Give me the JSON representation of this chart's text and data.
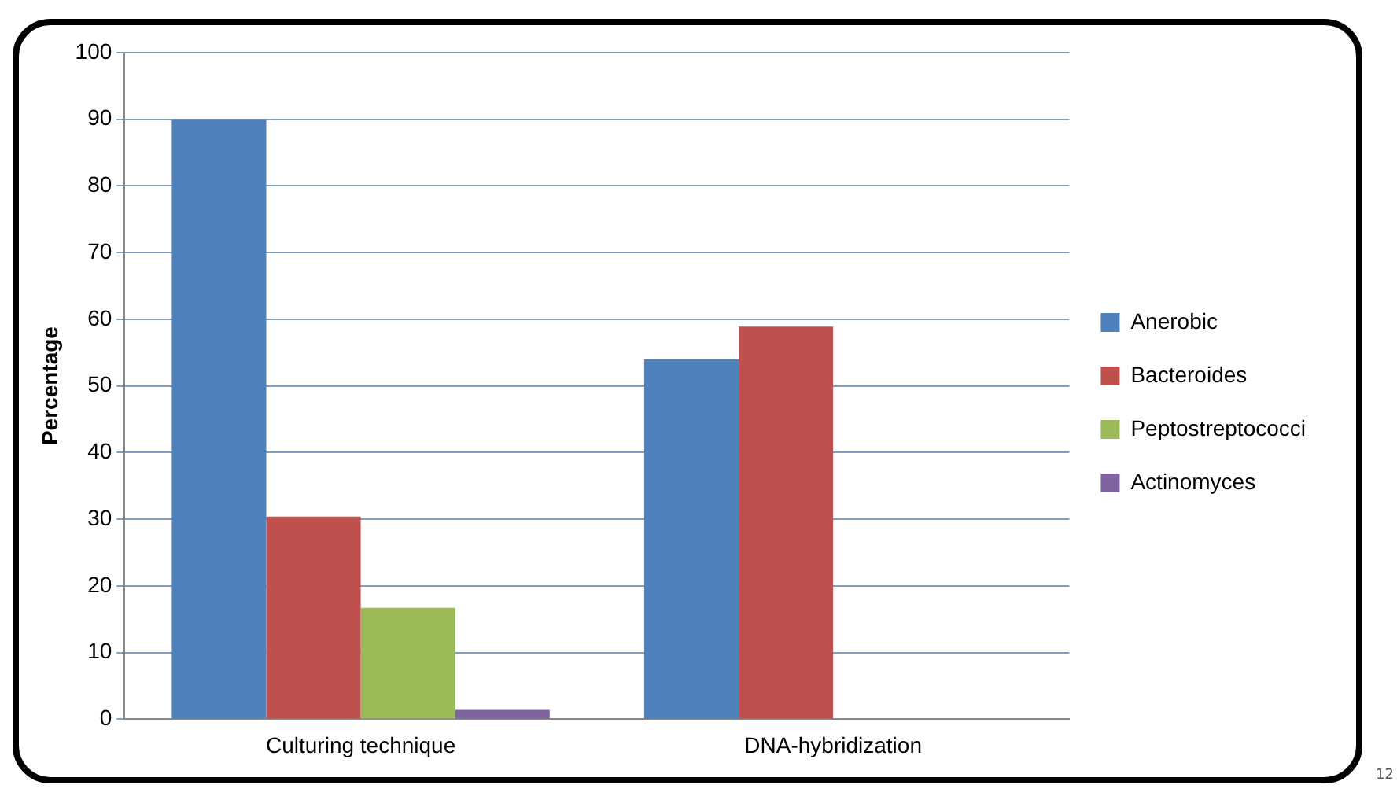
{
  "chart_data": {
    "type": "bar",
    "ylabel": "Percentage",
    "categories": [
      "Culturing technique",
      "DNA-hybridization"
    ],
    "series": [
      {
        "name": "Anerobic",
        "color": "#4f81bd",
        "values": [
          90,
          54
        ]
      },
      {
        "name": "Bacteroides",
        "color": "#c0504d",
        "values": [
          30.4,
          58.9
        ]
      },
      {
        "name": "Peptostreptococci",
        "color": "#9bbb59",
        "values": [
          16.7,
          null
        ]
      },
      {
        "name": "Actinomyces",
        "color": "#8064a2",
        "values": [
          1.4,
          null
        ]
      }
    ],
    "ylim": [
      0,
      100
    ],
    "yticks": [
      0,
      10,
      20,
      30,
      40,
      50,
      60,
      70,
      80,
      90,
      100
    ],
    "grid": "y",
    "legend": "right",
    "annotations": [
      "12"
    ]
  }
}
